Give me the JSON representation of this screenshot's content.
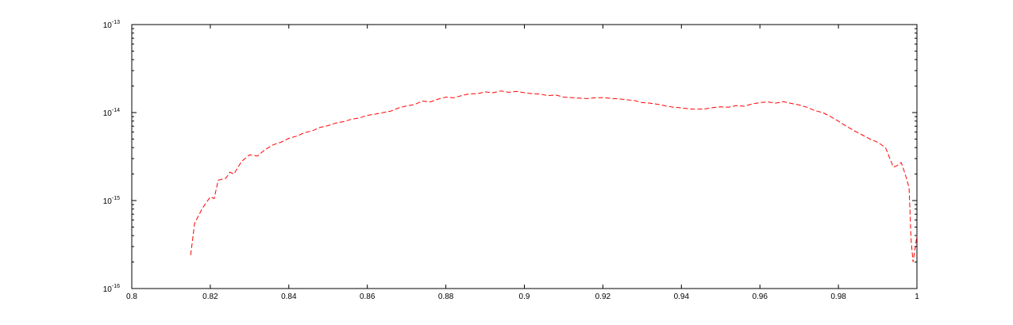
{
  "chart_data": {
    "type": "line",
    "title": "",
    "xlabel": "",
    "ylabel": "",
    "xlim": [
      0.8,
      1.0
    ],
    "ylim": [
      1e-16,
      1e-13
    ],
    "yscale": "log",
    "grid": false,
    "xticks": [
      0.8,
      0.82,
      0.84,
      0.86,
      0.88,
      0.9,
      0.92,
      0.94,
      0.96,
      0.98,
      1.0
    ],
    "xtick_labels": [
      "0.8",
      "0.82",
      "0.84",
      "0.86",
      "0.88",
      "0.9",
      "0.92",
      "0.94",
      "0.96",
      "0.98",
      "1"
    ],
    "yticks": [
      1e-16,
      1e-15,
      1e-14,
      1e-13
    ],
    "ytick_labels": [
      {
        "base": "10",
        "exp": "-16"
      },
      {
        "base": "10",
        "exp": "-15"
      },
      {
        "base": "10",
        "exp": "-14"
      },
      {
        "base": "10",
        "exp": "-13"
      }
    ],
    "series": [
      {
        "color": "#ff0000",
        "line_style": "dashed",
        "x": [
          0.815,
          0.816,
          0.818,
          0.82,
          0.821,
          0.822,
          0.824,
          0.825,
          0.826,
          0.828,
          0.83,
          0.832,
          0.834,
          0.836,
          0.838,
          0.84,
          0.842,
          0.844,
          0.846,
          0.848,
          0.85,
          0.852,
          0.854,
          0.856,
          0.858,
          0.86,
          0.862,
          0.864,
          0.866,
          0.868,
          0.87,
          0.872,
          0.874,
          0.876,
          0.878,
          0.88,
          0.882,
          0.884,
          0.886,
          0.888,
          0.89,
          0.892,
          0.894,
          0.896,
          0.898,
          0.9,
          0.902,
          0.904,
          0.906,
          0.908,
          0.91,
          0.912,
          0.914,
          0.916,
          0.918,
          0.92,
          0.922,
          0.924,
          0.926,
          0.928,
          0.93,
          0.932,
          0.934,
          0.936,
          0.938,
          0.94,
          0.942,
          0.944,
          0.946,
          0.948,
          0.95,
          0.952,
          0.954,
          0.956,
          0.958,
          0.96,
          0.962,
          0.964,
          0.966,
          0.968,
          0.97,
          0.972,
          0.974,
          0.976,
          0.978,
          0.98,
          0.982,
          0.984,
          0.986,
          0.988,
          0.99,
          0.992,
          0.994,
          0.995,
          0.996,
          0.997,
          0.998,
          0.9985,
          0.999,
          1.0
        ],
        "y": [
          2.4e-16,
          5.5e-16,
          8.2e-16,
          1.1e-15,
          1.05e-15,
          1.7e-15,
          1.8e-15,
          2.1e-15,
          2e-15,
          2.8e-15,
          3.3e-15,
          3.2e-15,
          3.8e-15,
          4.3e-15,
          4.6e-15,
          5.1e-15,
          5.4e-15,
          5.9e-15,
          6.2e-15,
          6.8e-15,
          7.1e-15,
          7.6e-15,
          7.9e-15,
          8.4e-15,
          8.7e-15,
          9.3e-15,
          9.6e-15,
          1e-14,
          1.04e-14,
          1.13e-14,
          1.19e-14,
          1.23e-14,
          1.35e-14,
          1.32e-14,
          1.42e-14,
          1.5e-14,
          1.47e-14,
          1.56e-14,
          1.63e-14,
          1.64e-14,
          1.72e-14,
          1.68e-14,
          1.76e-14,
          1.7e-14,
          1.74e-14,
          1.68e-14,
          1.64e-14,
          1.62e-14,
          1.56e-14,
          1.58e-14,
          1.5e-14,
          1.48e-14,
          1.46e-14,
          1.44e-14,
          1.47e-14,
          1.48e-14,
          1.45e-14,
          1.43e-14,
          1.4e-14,
          1.37e-14,
          1.3e-14,
          1.28e-14,
          1.24e-14,
          1.19e-14,
          1.15e-14,
          1.13e-14,
          1.1e-14,
          1.09e-14,
          1.1e-14,
          1.14e-14,
          1.16e-14,
          1.15e-14,
          1.2e-14,
          1.18e-14,
          1.25e-14,
          1.3e-14,
          1.32e-14,
          1.28e-14,
          1.33e-14,
          1.27e-14,
          1.22e-14,
          1.15e-14,
          1.05e-14,
          1e-14,
          9e-15,
          8e-15,
          7e-15,
          6.2e-15,
          5.6e-15,
          5e-15,
          4.6e-15,
          4e-15,
          2.4e-15,
          2.5e-15,
          2.7e-15,
          2e-15,
          1.4e-15,
          3.6e-16,
          2e-16,
          4e-16
        ]
      }
    ]
  }
}
